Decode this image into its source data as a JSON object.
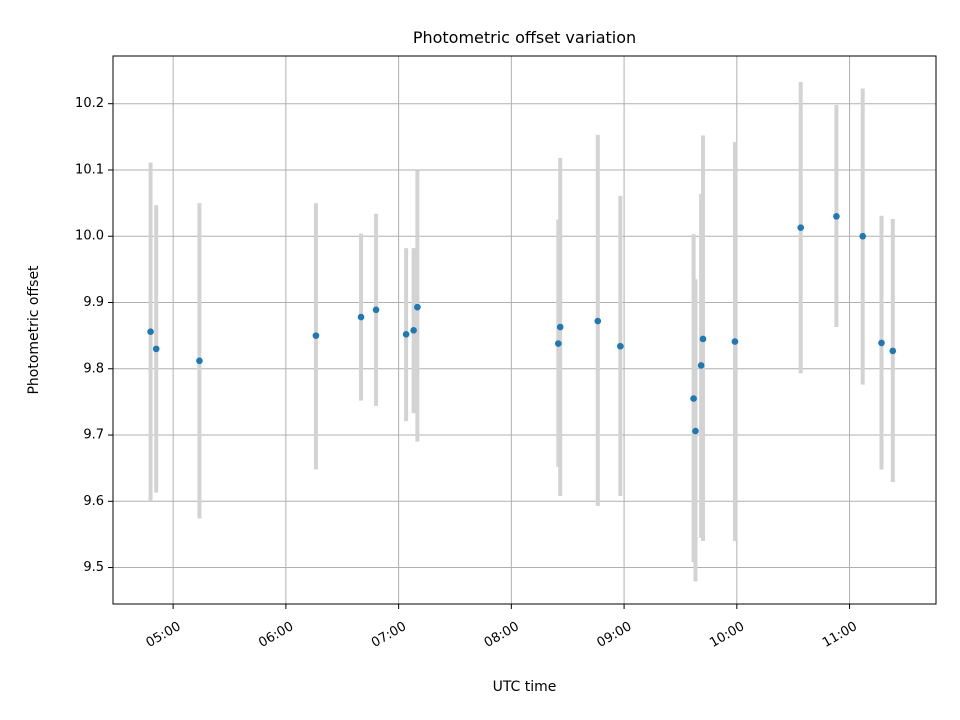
{
  "chart_data": {
    "type": "scatter",
    "title": "Photometric offset variation",
    "xlabel": "UTC time",
    "ylabel": "Photometric offset",
    "xlim": [
      "04:28",
      "11:46"
    ],
    "ylim": [
      9.445,
      10.272
    ],
    "grid": true,
    "x_ticks": [
      "05:00",
      "06:00",
      "07:00",
      "08:00",
      "09:00",
      "10:00",
      "11:00"
    ],
    "y_ticks": [
      "9.5",
      "9.6",
      "9.7",
      "9.8",
      "9.9",
      "10.0",
      "10.1",
      "10.2"
    ],
    "marker_color": "#1f77b4",
    "errorbar_color": "#d3d3d3",
    "points": [
      {
        "time": "04:48",
        "y": 9.856,
        "ylow": 9.6,
        "yhigh": 10.111
      },
      {
        "time": "04:51",
        "y": 9.83,
        "ylow": 9.613,
        "yhigh": 10.047
      },
      {
        "time": "05:14",
        "y": 9.812,
        "ylow": 9.574,
        "yhigh": 10.05
      },
      {
        "time": "06:16",
        "y": 9.85,
        "ylow": 9.648,
        "yhigh": 10.05
      },
      {
        "time": "06:40",
        "y": 9.878,
        "ylow": 9.752,
        "yhigh": 10.004
      },
      {
        "time": "06:48",
        "y": 9.889,
        "ylow": 9.744,
        "yhigh": 10.034
      },
      {
        "time": "07:04",
        "y": 9.852,
        "ylow": 9.721,
        "yhigh": 9.982
      },
      {
        "time": "07:08",
        "y": 9.858,
        "ylow": 9.733,
        "yhigh": 9.982
      },
      {
        "time": "07:10",
        "y": 9.893,
        "ylow": 9.69,
        "yhigh": 10.099
      },
      {
        "time": "08:25",
        "y": 9.838,
        "ylow": 9.652,
        "yhigh": 10.025
      },
      {
        "time": "08:26",
        "y": 9.863,
        "ylow": 9.608,
        "yhigh": 10.118
      },
      {
        "time": "08:46",
        "y": 9.872,
        "ylow": 9.593,
        "yhigh": 10.153
      },
      {
        "time": "08:58",
        "y": 9.834,
        "ylow": 9.608,
        "yhigh": 10.061
      },
      {
        "time": "09:37",
        "y": 9.755,
        "ylow": 9.508,
        "yhigh": 10.003
      },
      {
        "time": "09:38",
        "y": 9.706,
        "ylow": 9.479,
        "yhigh": 9.935
      },
      {
        "time": "09:41",
        "y": 9.805,
        "ylow": 9.545,
        "yhigh": 10.064
      },
      {
        "time": "09:42",
        "y": 9.845,
        "ylow": 9.54,
        "yhigh": 10.152
      },
      {
        "time": "09:59",
        "y": 9.841,
        "ylow": 9.54,
        "yhigh": 10.142
      },
      {
        "time": "10:34",
        "y": 10.013,
        "ylow": 9.793,
        "yhigh": 10.233
      },
      {
        "time": "10:53",
        "y": 10.03,
        "ylow": 9.863,
        "yhigh": 10.198
      },
      {
        "time": "11:07",
        "y": 10.0,
        "ylow": 9.776,
        "yhigh": 10.223
      },
      {
        "time": "11:17",
        "y": 9.839,
        "ylow": 9.648,
        "yhigh": 10.031
      },
      {
        "time": "11:23",
        "y": 9.827,
        "ylow": 9.629,
        "yhigh": 10.026
      }
    ]
  }
}
